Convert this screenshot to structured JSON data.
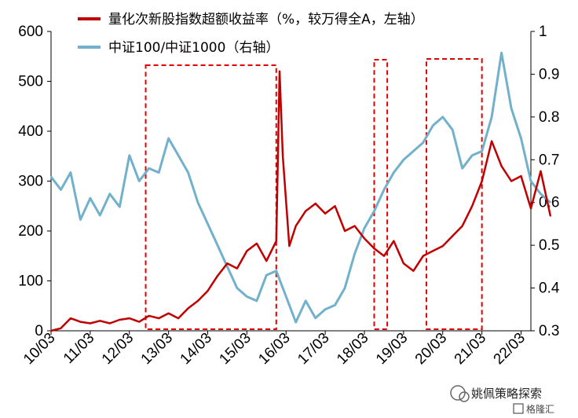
{
  "chart_data": {
    "type": "line",
    "x": [
      "10/03",
      "11/03",
      "12/03",
      "13/03",
      "14/03",
      "15/03",
      "16/03",
      "17/03",
      "18/03",
      "19/03",
      "20/03",
      "21/03",
      "22/03"
    ],
    "y_left": {
      "ticks": [
        0,
        100,
        200,
        300,
        400,
        500,
        600
      ],
      "ylim": [
        0,
        600
      ]
    },
    "y_right": {
      "ticks": [
        "0.3",
        "0.4",
        "0.5",
        "0.6",
        "0.7",
        "0.8",
        "0.9",
        "1"
      ],
      "ylim": [
        0.3,
        1.0
      ]
    },
    "legend_position": "top",
    "grid": false,
    "series": [
      {
        "name": "量化次新股指数超额收益率（%，较万得全A，左轴）",
        "axis": "left",
        "color": "#c00000",
        "points": [
          [
            "2010-03",
            0
          ],
          [
            "2010-06",
            5
          ],
          [
            "2010-09",
            25
          ],
          [
            "2010-12",
            18
          ],
          [
            "2011-03",
            15
          ],
          [
            "2011-06",
            20
          ],
          [
            "2011-09",
            15
          ],
          [
            "2011-12",
            22
          ],
          [
            "2012-03",
            25
          ],
          [
            "2012-06",
            18
          ],
          [
            "2012-09",
            30
          ],
          [
            "2012-12",
            25
          ],
          [
            "2013-03",
            35
          ],
          [
            "2013-06",
            25
          ],
          [
            "2013-09",
            45
          ],
          [
            "2013-12",
            60
          ],
          [
            "2014-03",
            80
          ],
          [
            "2014-06",
            110
          ],
          [
            "2014-09",
            135
          ],
          [
            "2014-12",
            125
          ],
          [
            "2015-03",
            160
          ],
          [
            "2015-06",
            175
          ],
          [
            "2015-09",
            140
          ],
          [
            "2015-12",
            180
          ],
          [
            "2016-01",
            520
          ],
          [
            "2016-02",
            350
          ],
          [
            "2016-04",
            170
          ],
          [
            "2016-06",
            210
          ],
          [
            "2016-09",
            240
          ],
          [
            "2016-12",
            255
          ],
          [
            "2017-03",
            235
          ],
          [
            "2017-06",
            250
          ],
          [
            "2017-09",
            200
          ],
          [
            "2017-12",
            210
          ],
          [
            "2018-03",
            185
          ],
          [
            "2018-06",
            165
          ],
          [
            "2018-09",
            150
          ],
          [
            "2018-12",
            180
          ],
          [
            "2019-03",
            135
          ],
          [
            "2019-06",
            120
          ],
          [
            "2019-09",
            150
          ],
          [
            "2019-12",
            160
          ],
          [
            "2020-03",
            170
          ],
          [
            "2020-06",
            190
          ],
          [
            "2020-09",
            210
          ],
          [
            "2020-12",
            250
          ],
          [
            "2021-03",
            300
          ],
          [
            "2021-06",
            380
          ],
          [
            "2021-09",
            330
          ],
          [
            "2021-12",
            300
          ],
          [
            "2022-03",
            310
          ],
          [
            "2022-06",
            245
          ],
          [
            "2022-09",
            320
          ],
          [
            "2022-12",
            230
          ]
        ]
      },
      {
        "name": "中证100/中证1000（右轴）",
        "axis": "right",
        "color": "#72b1cb",
        "points": [
          [
            "2010-03",
            0.66
          ],
          [
            "2010-06",
            0.63
          ],
          [
            "2010-09",
            0.67
          ],
          [
            "2010-12",
            0.56
          ],
          [
            "2011-03",
            0.61
          ],
          [
            "2011-06",
            0.57
          ],
          [
            "2011-09",
            0.62
          ],
          [
            "2011-12",
            0.59
          ],
          [
            "2012-03",
            0.71
          ],
          [
            "2012-06",
            0.65
          ],
          [
            "2012-09",
            0.68
          ],
          [
            "2012-12",
            0.67
          ],
          [
            "2013-03",
            0.75
          ],
          [
            "2013-06",
            0.71
          ],
          [
            "2013-09",
            0.67
          ],
          [
            "2013-12",
            0.6
          ],
          [
            "2014-03",
            0.55
          ],
          [
            "2014-06",
            0.5
          ],
          [
            "2014-09",
            0.45
          ],
          [
            "2014-12",
            0.4
          ],
          [
            "2015-03",
            0.38
          ],
          [
            "2015-06",
            0.37
          ],
          [
            "2015-09",
            0.43
          ],
          [
            "2015-12",
            0.44
          ],
          [
            "2016-03",
            0.38
          ],
          [
            "2016-06",
            0.32
          ],
          [
            "2016-09",
            0.37
          ],
          [
            "2016-12",
            0.33
          ],
          [
            "2017-03",
            0.35
          ],
          [
            "2017-06",
            0.36
          ],
          [
            "2017-09",
            0.4
          ],
          [
            "2017-12",
            0.48
          ],
          [
            "2018-03",
            0.54
          ],
          [
            "2018-06",
            0.58
          ],
          [
            "2018-09",
            0.63
          ],
          [
            "2018-12",
            0.67
          ],
          [
            "2019-03",
            0.7
          ],
          [
            "2019-06",
            0.72
          ],
          [
            "2019-09",
            0.74
          ],
          [
            "2019-12",
            0.78
          ],
          [
            "2020-03",
            0.8
          ],
          [
            "2020-06",
            0.77
          ],
          [
            "2020-09",
            0.68
          ],
          [
            "2020-12",
            0.71
          ],
          [
            "2021-03",
            0.72
          ],
          [
            "2021-06",
            0.8
          ],
          [
            "2021-09",
            0.95
          ],
          [
            "2021-12",
            0.82
          ],
          [
            "2022-03",
            0.75
          ],
          [
            "2022-06",
            0.65
          ],
          [
            "2022-09",
            0.62
          ],
          [
            "2022-12",
            0.6
          ]
        ]
      }
    ],
    "highlight_periods": [
      [
        "2012-08",
        "2015-12"
      ],
      [
        "2018-06",
        "2018-10"
      ],
      [
        "2019-10",
        "2021-03"
      ]
    ]
  },
  "watermark": {
    "line1": "姚佩策略探索",
    "line2": "格隆汇"
  }
}
